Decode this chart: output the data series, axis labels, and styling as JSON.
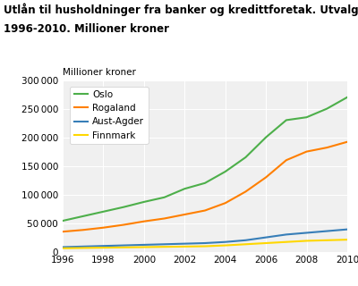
{
  "title_line1": "Utlån til husholdninger fra banker og kredittforetak. Utvalgte fylker.",
  "title_line2": "1996-2010. Millioner kroner",
  "ylabel": "Millioner kroner",
  "years": [
    1996,
    1997,
    1998,
    1999,
    2000,
    2001,
    2002,
    2003,
    2004,
    2005,
    2006,
    2007,
    2008,
    2009,
    2010
  ],
  "series": {
    "Oslo": {
      "color": "#4daf4a",
      "data": [
        54000,
        62000,
        70000,
        78000,
        87000,
        95000,
        110000,
        120000,
        140000,
        165000,
        200000,
        230000,
        235000,
        250000,
        270000
      ]
    },
    "Rogaland": {
      "color": "#ff7f00",
      "data": [
        35000,
        38000,
        42000,
        47000,
        53000,
        58000,
        65000,
        72000,
        85000,
        105000,
        130000,
        160000,
        175000,
        182000,
        192000
      ]
    },
    "Aust-Agder": {
      "color": "#377eb8",
      "data": [
        8000,
        9000,
        10000,
        11000,
        12000,
        13000,
        14000,
        15000,
        17000,
        20000,
        25000,
        30000,
        33000,
        36000,
        39000
      ]
    },
    "Finnmark": {
      "color": "#ffd700",
      "data": [
        6000,
        6500,
        7000,
        7500,
        8000,
        8500,
        9000,
        9500,
        11000,
        13000,
        15000,
        17000,
        19000,
        20000,
        21000
      ]
    }
  },
  "xlim": [
    1996,
    2010
  ],
  "ylim": [
    0,
    300000
  ],
  "yticks": [
    0,
    50000,
    100000,
    150000,
    200000,
    250000,
    300000
  ],
  "xticks": [
    1996,
    1998,
    2000,
    2002,
    2004,
    2006,
    2008,
    2010
  ],
  "background_color": "#ffffff",
  "plot_background": "#f0f0f0",
  "grid_color": "#ffffff",
  "title_fontsize": 8.5,
  "label_fontsize": 7.5,
  "tick_fontsize": 7.5,
  "legend_fontsize": 7.5
}
